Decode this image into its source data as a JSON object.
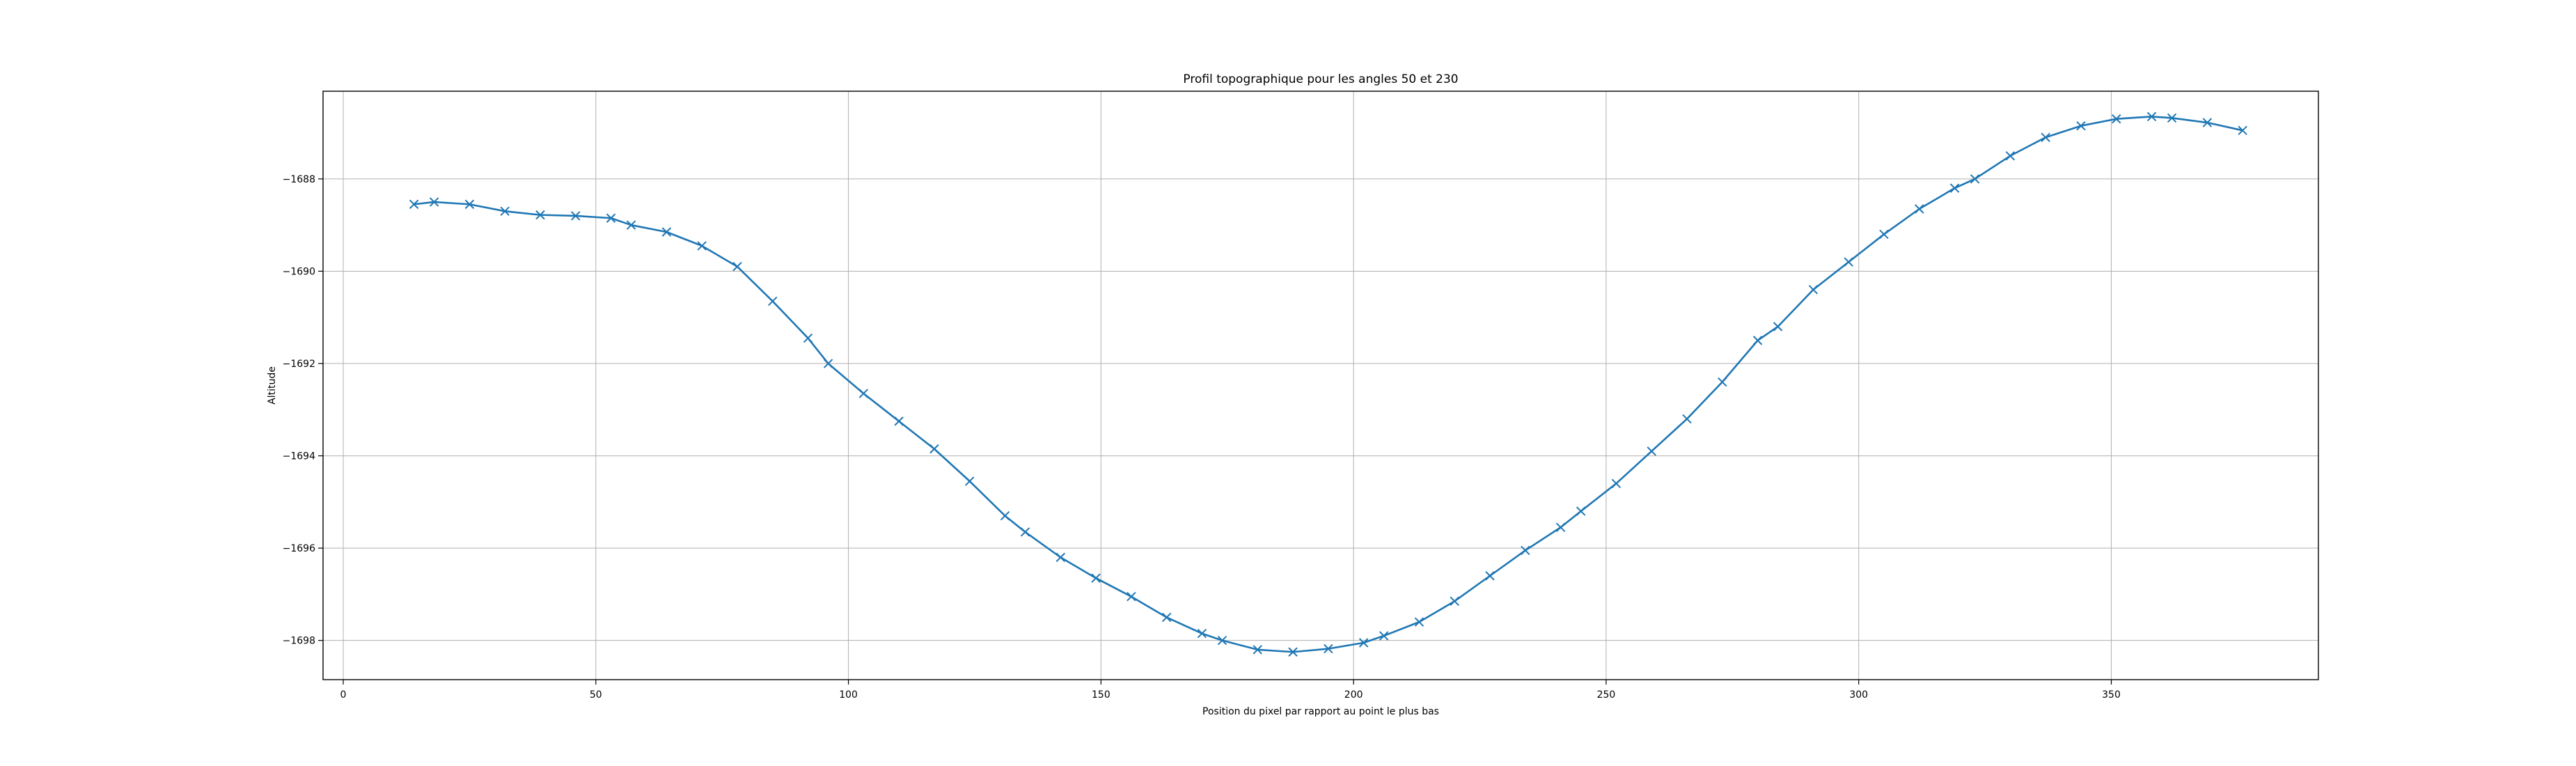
{
  "chart_data": {
    "type": "line",
    "title": "Profil topographique pour les angles 50 et 230",
    "xlabel": "Position du pixel par rapport au point le plus bas",
    "ylabel": "Altitude",
    "xlim": [
      -4,
      391
    ],
    "ylim": [
      -1698.85,
      -1686.1
    ],
    "xticks": [
      0,
      50,
      100,
      150,
      200,
      250,
      300,
      350
    ],
    "xtick_labels": [
      "0",
      "50",
      "100",
      "150",
      "200",
      "250",
      "300",
      "350"
    ],
    "yticks": [
      -1698,
      -1696,
      -1694,
      -1692,
      -1690,
      -1688
    ],
    "ytick_labels": [
      "−1698",
      "−1696",
      "−1694",
      "−1692",
      "−1690",
      "−1688"
    ],
    "grid": true,
    "series": [
      {
        "color": "#1f77b4",
        "marker": "x",
        "x": [
          14,
          18,
          25,
          32,
          39,
          46,
          53,
          57,
          64,
          71,
          78,
          85,
          92,
          96,
          103,
          110,
          117,
          124,
          131,
          135,
          142,
          149,
          156,
          163,
          170,
          174,
          181,
          188,
          195,
          202,
          206,
          213,
          220,
          227,
          234,
          241,
          245,
          252,
          259,
          266,
          273,
          280,
          284,
          291,
          298,
          305,
          312,
          319,
          323,
          330,
          337,
          344,
          351,
          358,
          362,
          369,
          376
        ],
        "y": [
          -1688.55,
          -1688.5,
          -1688.55,
          -1688.7,
          -1688.78,
          -1688.8,
          -1688.85,
          -1689.0,
          -1689.15,
          -1689.45,
          -1689.9,
          -1690.65,
          -1691.45,
          -1692.0,
          -1692.65,
          -1693.25,
          -1693.85,
          -1694.55,
          -1695.3,
          -1695.65,
          -1696.2,
          -1696.65,
          -1697.05,
          -1697.5,
          -1697.85,
          -1698.0,
          -1698.2,
          -1698.25,
          -1698.18,
          -1698.05,
          -1697.9,
          -1697.6,
          -1697.15,
          -1696.6,
          -1696.05,
          -1695.55,
          -1695.2,
          -1694.6,
          -1693.9,
          -1693.2,
          -1692.4,
          -1691.5,
          -1691.2,
          -1690.4,
          -1689.8,
          -1689.2,
          -1688.65,
          -1688.2,
          -1688.0,
          -1687.5,
          -1687.1,
          -1686.85,
          -1686.7,
          -1686.65,
          -1686.68,
          -1686.78,
          -1686.95
        ]
      }
    ]
  }
}
